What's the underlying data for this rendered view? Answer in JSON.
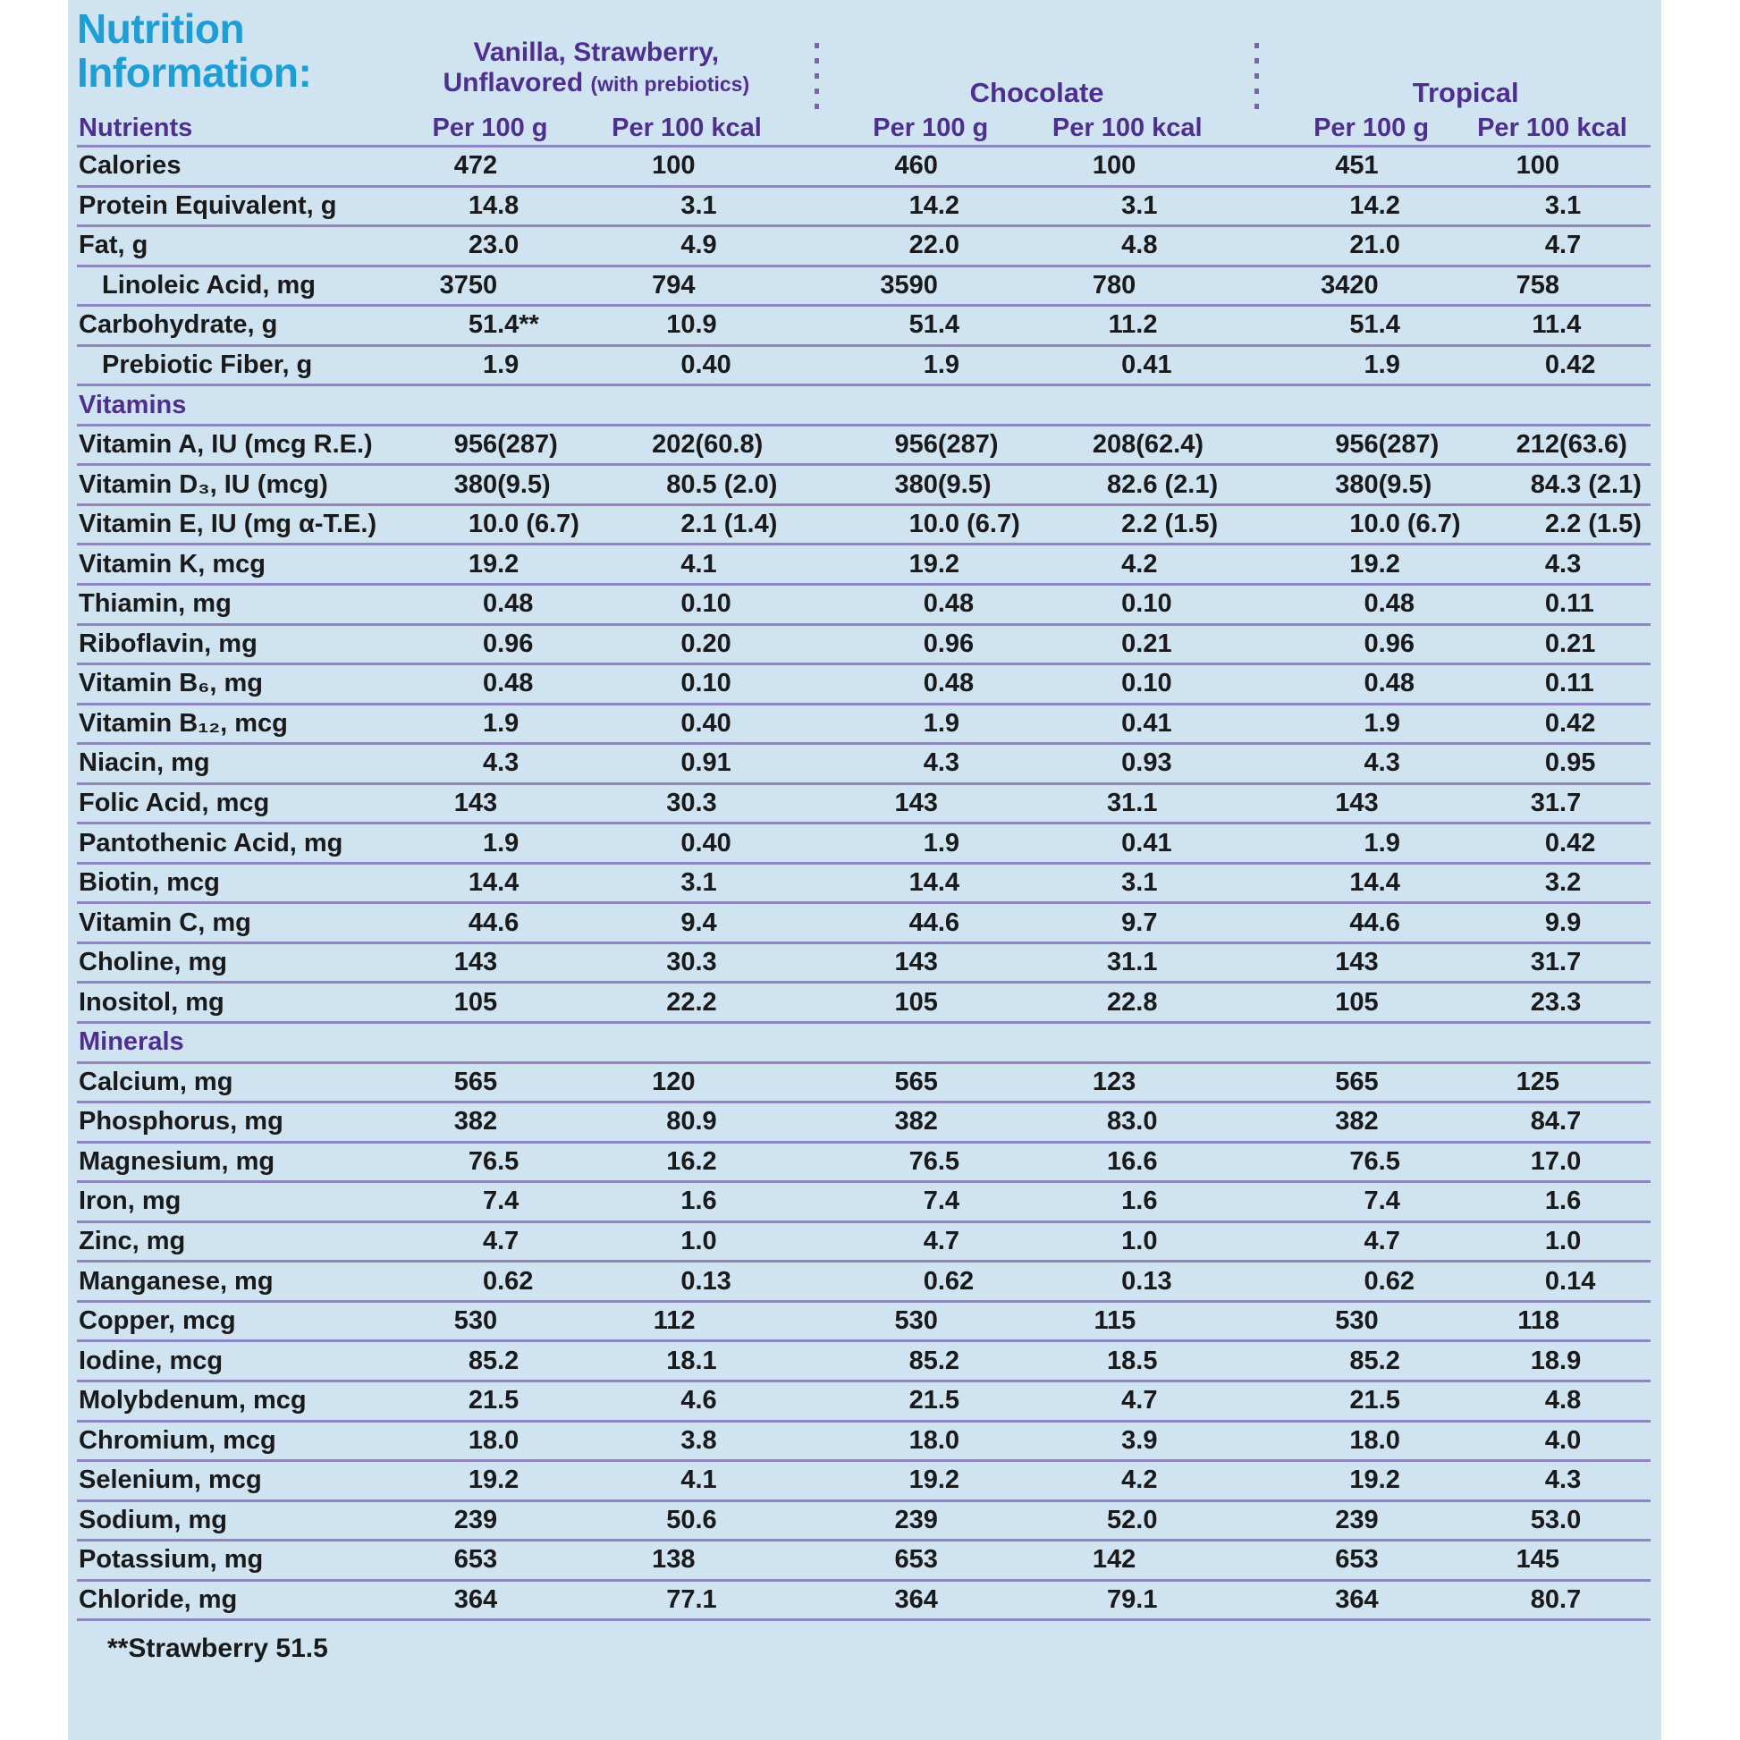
{
  "title": {
    "line1": "Nutrition",
    "line2": "Information:"
  },
  "groups": [
    {
      "line1": "Vanilla, Strawberry,",
      "line2": "Unflavored",
      "note": "(with prebiotics)"
    },
    {
      "name": "Chocolate"
    },
    {
      "name": "Tropical"
    }
  ],
  "columns": {
    "nutrients": "Nutrients",
    "per_100g": "Per 100 g",
    "per_100kcal": "Per 100 kcal"
  },
  "rows": [
    {
      "type": "data",
      "label": "Calories",
      "values": [
        "472",
        "100",
        "460",
        "100",
        "451",
        "100"
      ]
    },
    {
      "type": "data",
      "label": "Protein Equivalent, g",
      "values": [
        "14.8",
        "3.1",
        "14.2",
        "3.1",
        "14.2",
        "3.1"
      ]
    },
    {
      "type": "data",
      "label": "Fat, g",
      "values": [
        "23.0",
        "4.9",
        "22.0",
        "4.8",
        "21.0",
        "4.7"
      ]
    },
    {
      "type": "data",
      "label": "Linoleic Acid, mg",
      "indent": true,
      "values": [
        "3750",
        "794",
        "3590",
        "780",
        "3420",
        "758"
      ]
    },
    {
      "type": "data",
      "label": "Carbohydrate, g",
      "values": [
        "51.4**",
        "10.9",
        "51.4",
        "11.2",
        "51.4",
        "11.4"
      ]
    },
    {
      "type": "data",
      "label": "Prebiotic Fiber, g",
      "indent": true,
      "values": [
        "1.9",
        "0.40",
        "1.9",
        "0.41",
        "1.9",
        "0.42"
      ]
    },
    {
      "type": "section",
      "label": "Vitamins"
    },
    {
      "type": "data",
      "label": "Vitamin A, IU (mcg R.E.)",
      "values": [
        "956 (287)",
        "202 (60.8)",
        "956 (287)",
        "208 (62.4)",
        "956 (287)",
        "212 (63.6)"
      ]
    },
    {
      "type": "data",
      "label": "Vitamin D₃, IU (mcg)",
      "values": [
        "380 (9.5)",
        "80.5 (2.0)",
        "380 (9.5)",
        "82.6 (2.1)",
        "380 (9.5)",
        "84.3 (2.1)"
      ]
    },
    {
      "type": "data",
      "label": "Vitamin E, IU (mg α-T.E.)",
      "values": [
        "10.0 (6.7)",
        "2.1 (1.4)",
        "10.0 (6.7)",
        "2.2 (1.5)",
        "10.0 (6.7)",
        "2.2 (1.5)"
      ]
    },
    {
      "type": "data",
      "label": "Vitamin K, mcg",
      "values": [
        "19.2",
        "4.1",
        "19.2",
        "4.2",
        "19.2",
        "4.3"
      ]
    },
    {
      "type": "data",
      "label": "Thiamin, mg",
      "values": [
        "0.48",
        "0.10",
        "0.48",
        "0.10",
        "0.48",
        "0.11"
      ]
    },
    {
      "type": "data",
      "label": "Riboflavin, mg",
      "values": [
        "0.96",
        "0.20",
        "0.96",
        "0.21",
        "0.96",
        "0.21"
      ]
    },
    {
      "type": "data",
      "label": "Vitamin B₆, mg",
      "values": [
        "0.48",
        "0.10",
        "0.48",
        "0.10",
        "0.48",
        "0.11"
      ]
    },
    {
      "type": "data",
      "label": "Vitamin B₁₂, mcg",
      "values": [
        "1.9",
        "0.40",
        "1.9",
        "0.41",
        "1.9",
        "0.42"
      ]
    },
    {
      "type": "data",
      "label": "Niacin, mg",
      "values": [
        "4.3",
        "0.91",
        "4.3",
        "0.93",
        "4.3",
        "0.95"
      ]
    },
    {
      "type": "data",
      "label": "Folic Acid, mcg",
      "values": [
        "143",
        "30.3",
        "143",
        "31.1",
        "143",
        "31.7"
      ]
    },
    {
      "type": "data",
      "label": "Pantothenic Acid, mg",
      "values": [
        "1.9",
        "0.40",
        "1.9",
        "0.41",
        "1.9",
        "0.42"
      ]
    },
    {
      "type": "data",
      "label": "Biotin, mcg",
      "values": [
        "14.4",
        "3.1",
        "14.4",
        "3.1",
        "14.4",
        "3.2"
      ]
    },
    {
      "type": "data",
      "label": "Vitamin C, mg",
      "values": [
        "44.6",
        "9.4",
        "44.6",
        "9.7",
        "44.6",
        "9.9"
      ]
    },
    {
      "type": "data",
      "label": "Choline, mg",
      "values": [
        "143",
        "30.3",
        "143",
        "31.1",
        "143",
        "31.7"
      ]
    },
    {
      "type": "data",
      "label": "Inositol, mg",
      "values": [
        "105",
        "22.2",
        "105",
        "22.8",
        "105",
        "23.3"
      ]
    },
    {
      "type": "section",
      "label": "Minerals"
    },
    {
      "type": "data",
      "label": "Calcium, mg",
      "values": [
        "565",
        "120",
        "565",
        "123",
        "565",
        "125"
      ]
    },
    {
      "type": "data",
      "label": "Phosphorus, mg",
      "values": [
        "382",
        "80.9",
        "382",
        "83.0",
        "382",
        "84.7"
      ]
    },
    {
      "type": "data",
      "label": "Magnesium, mg",
      "values": [
        "76.5",
        "16.2",
        "76.5",
        "16.6",
        "76.5",
        "17.0"
      ]
    },
    {
      "type": "data",
      "label": "Iron, mg",
      "values": [
        "7.4",
        "1.6",
        "7.4",
        "1.6",
        "7.4",
        "1.6"
      ]
    },
    {
      "type": "data",
      "label": "Zinc, mg",
      "values": [
        "4.7",
        "1.0",
        "4.7",
        "1.0",
        "4.7",
        "1.0"
      ]
    },
    {
      "type": "data",
      "label": "Manganese, mg",
      "values": [
        "0.62",
        "0.13",
        "0.62",
        "0.13",
        "0.62",
        "0.14"
      ]
    },
    {
      "type": "data",
      "label": "Copper, mcg",
      "values": [
        "530",
        "112",
        "530",
        "115",
        "530",
        "118"
      ]
    },
    {
      "type": "data",
      "label": "Iodine, mcg",
      "values": [
        "85.2",
        "18.1",
        "85.2",
        "18.5",
        "85.2",
        "18.9"
      ]
    },
    {
      "type": "data",
      "label": "Molybdenum, mcg",
      "values": [
        "21.5",
        "4.6",
        "21.5",
        "4.7",
        "21.5",
        "4.8"
      ]
    },
    {
      "type": "data",
      "label": "Chromium, mcg",
      "values": [
        "18.0",
        "3.8",
        "18.0",
        "3.9",
        "18.0",
        "4.0"
      ]
    },
    {
      "type": "data",
      "label": "Selenium, mcg",
      "values": [
        "19.2",
        "4.1",
        "19.2",
        "4.2",
        "19.2",
        "4.3"
      ]
    },
    {
      "type": "data",
      "label": "Sodium, mg",
      "values": [
        "239",
        "50.6",
        "239",
        "52.0",
        "239",
        "53.0"
      ]
    },
    {
      "type": "data",
      "label": "Potassium, mg",
      "values": [
        "653",
        "138",
        "653",
        "142",
        "653",
        "145"
      ]
    },
    {
      "type": "data",
      "label": "Chloride, mg",
      "values": [
        "364",
        "77.1",
        "364",
        "79.1",
        "364",
        "80.7"
      ]
    }
  ],
  "footnote": "**Strawberry 51.5",
  "colors": {
    "panel_background": "#cfe3f1",
    "title_cyan": "#1d9fd6",
    "header_purple": "#4f2f8e",
    "row_line": "#8e85c1",
    "dotted_separator": "#7c63ad",
    "data_text": "#1a1a1a"
  }
}
